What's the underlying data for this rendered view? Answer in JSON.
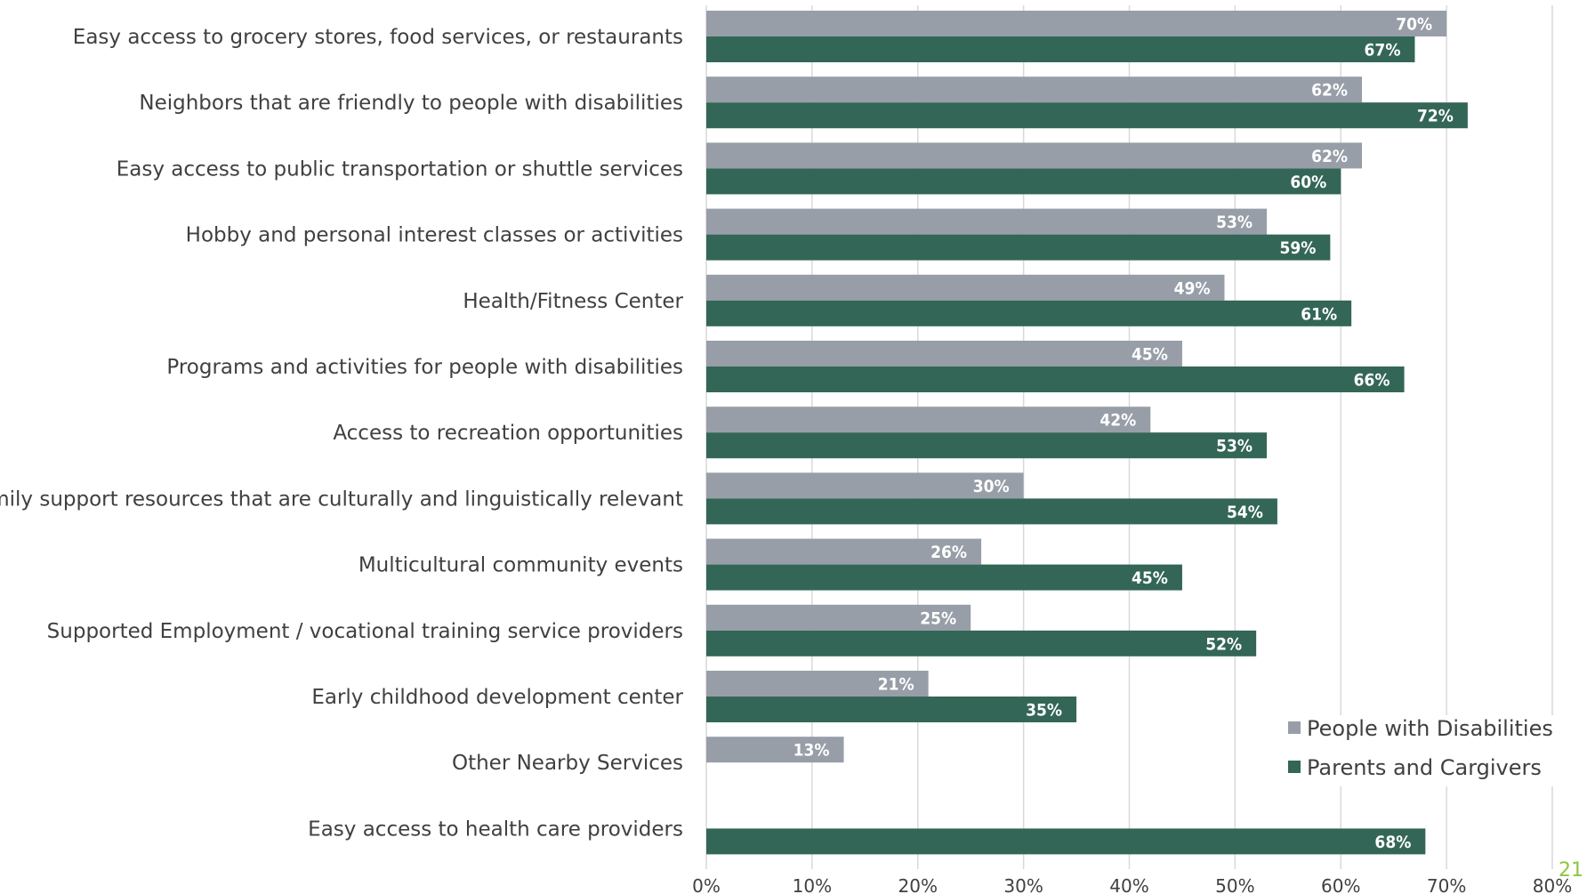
{
  "chart_data": {
    "type": "bar",
    "orientation": "horizontal",
    "categories": [
      "Easy access to grocery stores, food services, or restaurants",
      "Neighbors that are friendly to people with disabilities",
      "Easy access to public transportation or shuttle services",
      "Hobby and personal interest classes or activities",
      "Health/Fitness Center",
      "Programs and activities for people with disabilities",
      "Access to recreation opportunities",
      "Family support resources that are culturally and linguistically relevant",
      "Multicultural community events",
      "Supported Employment / vocational training service providers",
      "Early childhood development center",
      "Other Nearby Services",
      "Easy access to health care providers"
    ],
    "series": [
      {
        "name": "People with Disabilities",
        "color": "#989ea7",
        "values": [
          70,
          62,
          62,
          53,
          49,
          45,
          42,
          30,
          26,
          25,
          21,
          13,
          null
        ],
        "labels": [
          "70%",
          "62%",
          "62%",
          "53%",
          "49%",
          "45%",
          "42%",
          "30%",
          "26%",
          "25%",
          "21%",
          "13%",
          ""
        ]
      },
      {
        "name": "Parents and Cargivers",
        "color": "#336656",
        "values": [
          67,
          72,
          60,
          59,
          61,
          66,
          53,
          54,
          45,
          52,
          35,
          null,
          68
        ],
        "labels": [
          "67%",
          "72%",
          "60%",
          "59%",
          "61%",
          "66%",
          "53%",
          "54%",
          "45%",
          "52%",
          "35%",
          "",
          "68%"
        ]
      }
    ],
    "xlim": [
      0,
      80
    ],
    "xticks": [
      0,
      10,
      20,
      30,
      40,
      50,
      60,
      70,
      80
    ],
    "xtick_labels": [
      "0%",
      "10%",
      "20%",
      "30%",
      "40%",
      "50%",
      "60%",
      "70%",
      "80%"
    ],
    "grid": true,
    "legend_position": "bottom-right"
  },
  "page_number": "21"
}
